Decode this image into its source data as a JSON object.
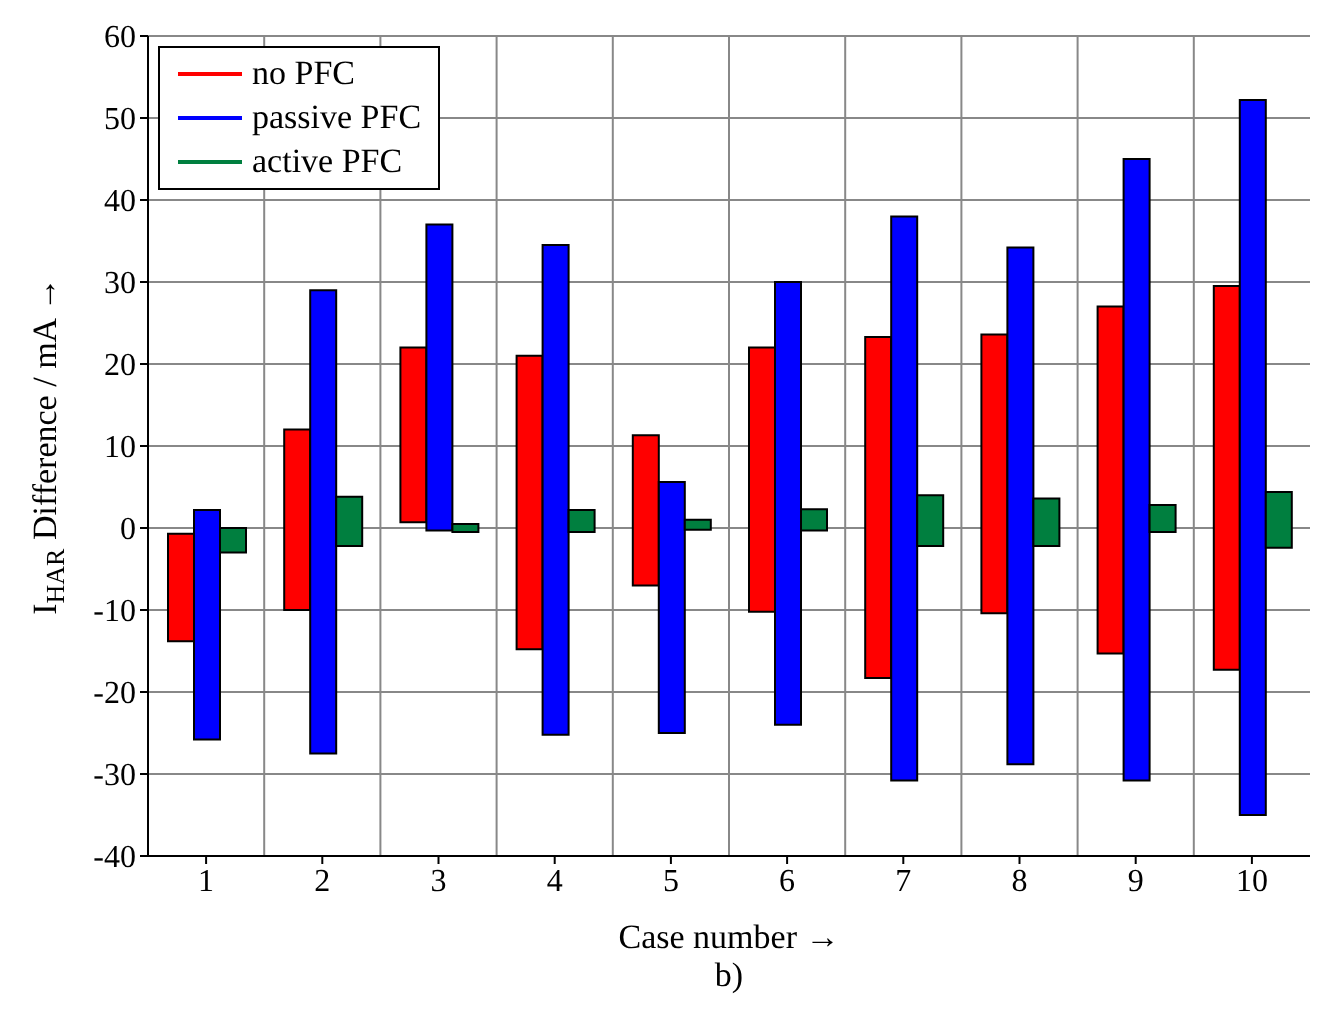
{
  "chart_data": {
    "type": "bar",
    "xlabel": "Case number →",
    "ylabel": "I$_{HAR}$ Difference / mA →",
    "categories": [
      "1",
      "2",
      "3",
      "4",
      "5",
      "6",
      "7",
      "8",
      "9",
      "10"
    ],
    "series": [
      {
        "name": "no PFC",
        "color": "#ff0000",
        "base": [
          -13.8,
          -10,
          0.7,
          -14.8,
          -7,
          -10.2,
          -18.3,
          -10.4,
          -15.3,
          -17.3
        ],
        "values": [
          13.1,
          22,
          21.3,
          35.8,
          18.3,
          32.2,
          41.6,
          34,
          42.3,
          46.8
        ]
      },
      {
        "name": "passive PFC",
        "color": "#0000ff",
        "base": [
          -25.8,
          -27.5,
          -0.3,
          -25.2,
          -25,
          -24,
          -30.8,
          -28.8,
          -30.8,
          -35
        ],
        "values": [
          28,
          56.5,
          37.3,
          59.7,
          30.6,
          54,
          68.8,
          63,
          75.8,
          87.2
        ]
      },
      {
        "name": "active PFC",
        "color": "#007f3f",
        "base": [
          -3,
          -2.2,
          -0.5,
          -0.5,
          -0.2,
          -0.3,
          -2.2,
          -2.2,
          -0.5,
          -2.4
        ],
        "values": [
          3,
          6,
          1,
          2.7,
          1.2,
          2.6,
          6.2,
          5.8,
          3.3,
          6.8
        ]
      }
    ],
    "ylim": [
      -40,
      60
    ],
    "yticks": [
      -40,
      -30,
      -20,
      -10,
      0,
      10,
      20,
      30,
      40,
      50,
      60
    ],
    "grid": true,
    "legend": "top left",
    "annotations": [
      "b)"
    ]
  }
}
